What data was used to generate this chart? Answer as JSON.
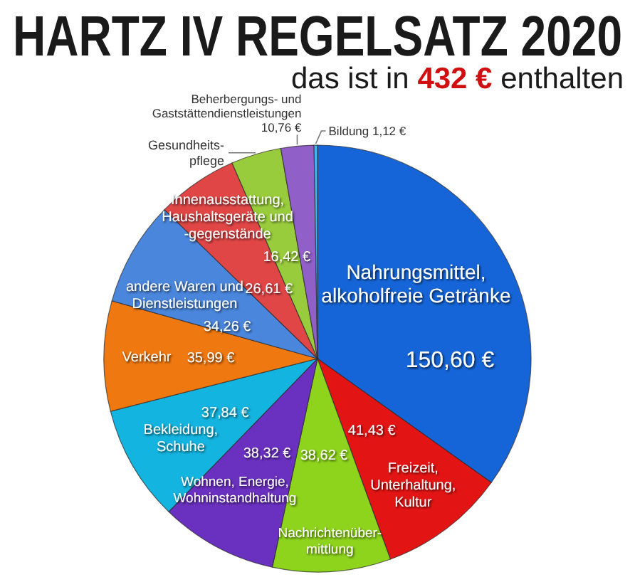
{
  "chart_data": {
    "type": "pie",
    "title": "HARTZ IV REGELSATZ 2020",
    "subtitle": "das ist in 432 € enthalten",
    "categories": [
      "Nahrungsmittel,\nalkoholfreie Getränke",
      "Freizeit,\nUnterhaltung,\nKultur",
      "Nachrichtenüber-\nmittlung",
      "Wohnen, Energie,\nWohninstandhaltung",
      "Bekleidung,\nSchuhe",
      "Verkehr",
      "andere Waren und\nDienstleistungen",
      "Innenausstattung,\nHaushaltsgeräte und\n-gegenstände",
      "Gesundheits-\npflege",
      "Beherbergungs- und\nGaststättendienstleistungen",
      "Bildung"
    ],
    "values": [
      150.6,
      41.43,
      38.62,
      38.32,
      37.84,
      35.99,
      34.26,
      26.61,
      16.42,
      10.76,
      1.12
    ],
    "value_labels": [
      "150,60 €",
      "41,43 €",
      "38,62 €",
      "38,32 €",
      "37,84 €",
      "35,99 €",
      "34,26 €",
      "26,61 €",
      "16,42 €",
      "10,76 €",
      "1,12 €"
    ],
    "colors": [
      "#1565d8",
      "#e31414",
      "#8ed41c",
      "#6a30c0",
      "#14b4e0",
      "#f07810",
      "#4a86dc",
      "#e04646",
      "#98cc3c",
      "#9060c8",
      "#44b4ee"
    ]
  }
}
